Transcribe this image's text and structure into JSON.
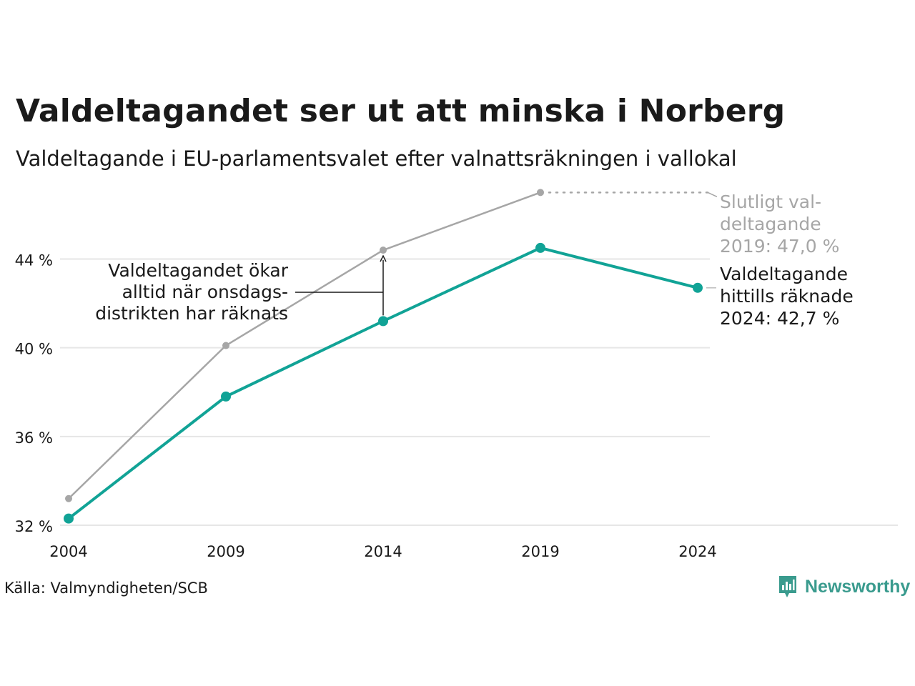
{
  "header": {
    "title": "Valdeltagandet ser ut att minska i Norberg",
    "subtitle": "Valdeltagande i EU-parlamentsvalet efter valnattsräkningen i vallokal"
  },
  "footer": {
    "source": "Källa: Valmyndigheten/SCB",
    "logo_text": "Newsworthy"
  },
  "colors": {
    "final": "#a6a6a6",
    "counted": "#11a396",
    "grid": "#e6e6e6",
    "text": "#1a1a1a",
    "gray_text": "#a6a6a6"
  },
  "chart_data": {
    "type": "line",
    "categories": [
      "2004",
      "2009",
      "2014",
      "2019",
      "2024"
    ],
    "ylim": [
      32,
      47.3
    ],
    "yticks": [
      32,
      36,
      40,
      44
    ],
    "ytick_labels": [
      "32 %",
      "36 %",
      "40 %",
      "44 %"
    ],
    "grid": true,
    "series": [
      {
        "key": "final",
        "values": [
          33.2,
          40.1,
          44.4,
          47.0,
          null
        ]
      },
      {
        "key": "counted",
        "values": [
          32.3,
          37.8,
          41.2,
          44.5,
          42.7
        ]
      }
    ],
    "annotations": {
      "final_label": [
        "Slutligt val-",
        "deltagande",
        "2019: 47,0 %"
      ],
      "counted_label": [
        "Valdeltagande",
        "hittills räknade",
        "2024: 42,7 %"
      ],
      "note": [
        "Valdeltagandet ökar",
        "alltid när onsdags-",
        "distrikten har räknats"
      ]
    }
  }
}
